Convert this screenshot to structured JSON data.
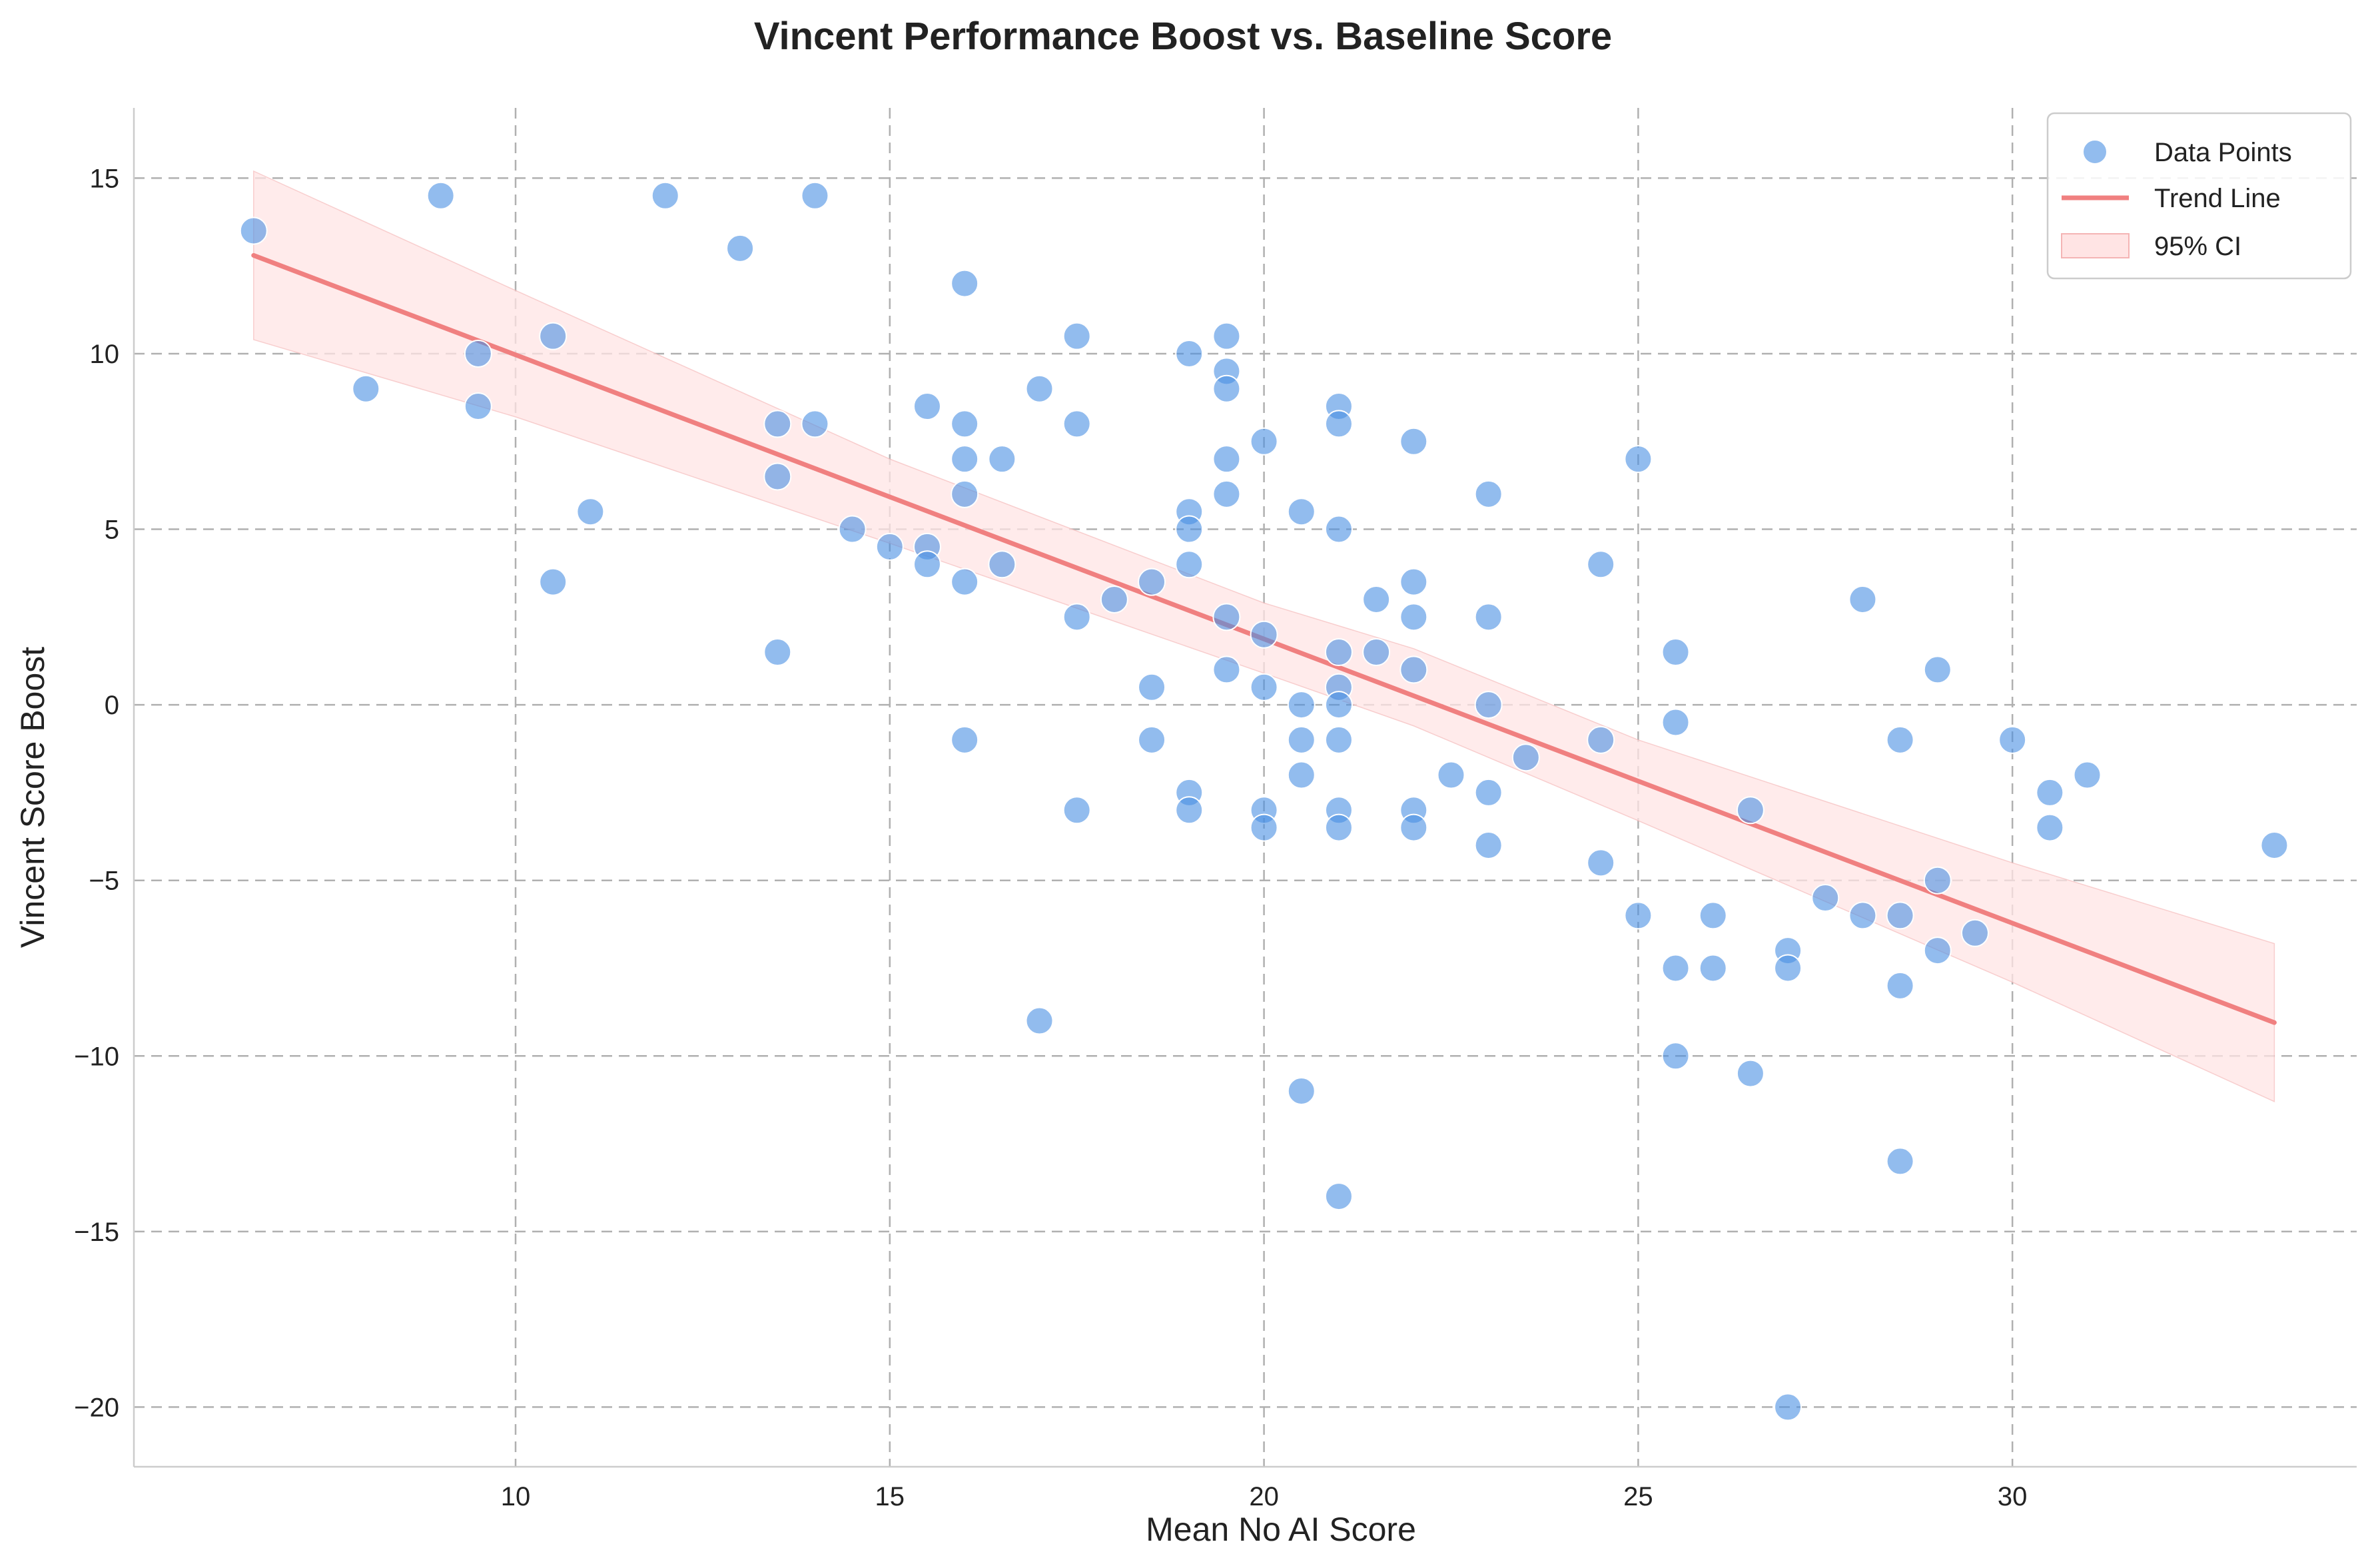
{
  "chart_data": {
    "type": "scatter",
    "title": "Vincent Performance Boost vs. Baseline Score",
    "xlabel": "Mean No AI Score",
    "ylabel": "Vincent Score Boost",
    "xlim": [
      4.9,
      34.6
    ],
    "ylim": [
      -21.7,
      17.0
    ],
    "x_ticks": [
      10,
      15,
      20,
      25,
      30
    ],
    "x_tick_labels": [
      "10",
      "15",
      "20",
      "25",
      "30"
    ],
    "y_ticks": [
      15,
      10,
      5,
      0,
      -5,
      -10,
      -15,
      -20
    ],
    "y_tick_labels": [
      "15",
      "10",
      "5",
      "0",
      "−5",
      "−10",
      "−15",
      "−20"
    ],
    "grid": true,
    "legend_position": "top-right",
    "colors": {
      "points": "#4a90e2",
      "trend": "#f08080",
      "ci_fill": "#ffe4e4"
    },
    "legend": [
      {
        "label": "Data Points",
        "kind": "marker"
      },
      {
        "label": "Trend Line",
        "kind": "line"
      },
      {
        "label": "95% CI",
        "kind": "patch"
      }
    ],
    "series": [
      {
        "name": "Data Points",
        "kind": "scatter",
        "points": [
          [
            6.5,
            13.5
          ],
          [
            8,
            9
          ],
          [
            9,
            14.5
          ],
          [
            9.5,
            10
          ],
          [
            9.5,
            8.5
          ],
          [
            10.5,
            10.5
          ],
          [
            10.5,
            3.5
          ],
          [
            11,
            5.5
          ],
          [
            12,
            14.5
          ],
          [
            13,
            13
          ],
          [
            13.5,
            8
          ],
          [
            13.5,
            6.5
          ],
          [
            13.5,
            1.5
          ],
          [
            14,
            14.5
          ],
          [
            14,
            8
          ],
          [
            14.5,
            5
          ],
          [
            15,
            4.5
          ],
          [
            15.5,
            8.5
          ],
          [
            15.5,
            4.5
          ],
          [
            15.5,
            4
          ],
          [
            16,
            12
          ],
          [
            16,
            8
          ],
          [
            16,
            7
          ],
          [
            16,
            6
          ],
          [
            16,
            3.5
          ],
          [
            16,
            -1
          ],
          [
            16.5,
            7
          ],
          [
            16.5,
            4
          ],
          [
            17,
            9
          ],
          [
            17,
            -9
          ],
          [
            17.5,
            10.5
          ],
          [
            17.5,
            8
          ],
          [
            17.5,
            2.5
          ],
          [
            17.5,
            -3
          ],
          [
            18,
            3
          ],
          [
            18.5,
            3.5
          ],
          [
            18.5,
            0.5
          ],
          [
            18.5,
            -1
          ],
          [
            19,
            10
          ],
          [
            19,
            5.5
          ],
          [
            19,
            5
          ],
          [
            19,
            4
          ],
          [
            19,
            -2.5
          ],
          [
            19,
            -3
          ],
          [
            19.5,
            10.5
          ],
          [
            19.5,
            9.5
          ],
          [
            19.5,
            9
          ],
          [
            19.5,
            7
          ],
          [
            19.5,
            6
          ],
          [
            19.5,
            2.5
          ],
          [
            19.5,
            1
          ],
          [
            20,
            7.5
          ],
          [
            20,
            2
          ],
          [
            20,
            0.5
          ],
          [
            20,
            -3
          ],
          [
            20,
            -3.5
          ],
          [
            20.5,
            5.5
          ],
          [
            20.5,
            0
          ],
          [
            20.5,
            -1
          ],
          [
            20.5,
            -2
          ],
          [
            20.5,
            -11
          ],
          [
            21,
            8.5
          ],
          [
            21,
            8
          ],
          [
            21,
            5
          ],
          [
            21,
            1.5
          ],
          [
            21,
            0.5
          ],
          [
            21,
            0
          ],
          [
            21,
            -1
          ],
          [
            21,
            -3
          ],
          [
            21,
            -3.5
          ],
          [
            21,
            -14
          ],
          [
            21.5,
            3
          ],
          [
            21.5,
            1.5
          ],
          [
            22,
            7.5
          ],
          [
            22,
            3.5
          ],
          [
            22,
            2.5
          ],
          [
            22,
            1
          ],
          [
            22,
            -3
          ],
          [
            22,
            -3.5
          ],
          [
            22.5,
            -2
          ],
          [
            23,
            6
          ],
          [
            23,
            2.5
          ],
          [
            23,
            0
          ],
          [
            23,
            -2.5
          ],
          [
            23,
            -4
          ],
          [
            23.5,
            -1.5
          ],
          [
            24.5,
            4
          ],
          [
            24.5,
            -1
          ],
          [
            24.5,
            -4.5
          ],
          [
            25,
            7
          ],
          [
            25,
            -6
          ],
          [
            25.5,
            1.5
          ],
          [
            25.5,
            -0.5
          ],
          [
            25.5,
            -7.5
          ],
          [
            25.5,
            -10
          ],
          [
            26,
            -6
          ],
          [
            26,
            -7.5
          ],
          [
            26.5,
            -3
          ],
          [
            26.5,
            -10.5
          ],
          [
            27,
            -7
          ],
          [
            27,
            -7.5
          ],
          [
            27,
            -20
          ],
          [
            27.5,
            -5.5
          ],
          [
            28,
            3
          ],
          [
            28,
            -6
          ],
          [
            28.5,
            -1
          ],
          [
            28.5,
            -6
          ],
          [
            28.5,
            -8
          ],
          [
            28.5,
            -13
          ],
          [
            29,
            1
          ],
          [
            29,
            -5
          ],
          [
            29,
            -7
          ],
          [
            29.5,
            -6.5
          ],
          [
            30,
            -1
          ],
          [
            30.5,
            -2.5
          ],
          [
            30.5,
            -3.5
          ],
          [
            31,
            -2
          ],
          [
            33.5,
            -4
          ]
        ]
      },
      {
        "name": "Trend Line",
        "kind": "line",
        "x": [
          6.5,
          33.5
        ],
        "y": [
          12.8,
          -9.05
        ]
      },
      {
        "name": "95% CI",
        "kind": "band",
        "x": [
          6.5,
          10,
          15,
          20,
          22,
          25,
          30,
          33.5
        ],
        "lower": [
          10.4,
          8.2,
          4.6,
          0.9,
          -0.6,
          -3.3,
          -7.9,
          -11.3
        ],
        "upper": [
          15.2,
          11.8,
          7.0,
          2.9,
          1.6,
          -1.0,
          -4.5,
          -6.8
        ]
      }
    ]
  }
}
